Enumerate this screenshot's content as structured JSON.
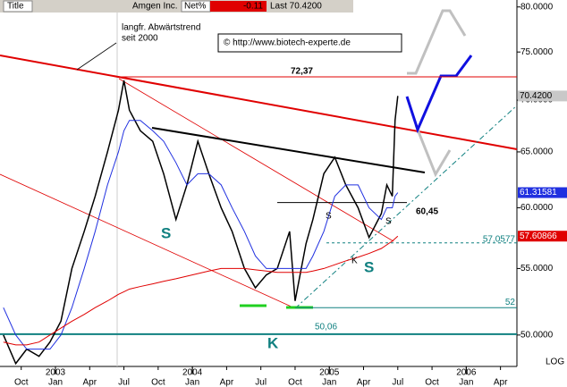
{
  "header": {
    "title_label": "Title",
    "symbol": "Amgen Inc.",
    "net_label": "Net%",
    "net_value": "-0.11",
    "last": "Last 70.4200"
  },
  "annotations": {
    "trend_note_1": "langfr. Abwärtstrend",
    "trend_note_2": "seit 2000",
    "copyright": "© http://www.biotech-experte.de",
    "s1": "S",
    "s2": "S",
    "s3": "S",
    "s4": "S",
    "k1": "K",
    "k2": "K",
    "scale": "LOG"
  },
  "chart_data": {
    "type": "line",
    "y_scale": "log",
    "ylim": [
      47.8,
      80.8
    ],
    "xlim": [
      2002.595,
      2006.37
    ],
    "yticks": [
      {
        "value": 80,
        "label": "80.0000"
      },
      {
        "value": 75,
        "label": "75.0000"
      },
      {
        "value": 70,
        "label": "70.0000"
      },
      {
        "value": 65,
        "label": "65.0000"
      },
      {
        "value": 60,
        "label": "60.0000"
      },
      {
        "value": 55,
        "label": "55.0000"
      },
      {
        "value": 50,
        "label": "50.0000"
      }
    ],
    "xticks": [
      {
        "value": 2002.75,
        "label": "Oct"
      },
      {
        "value": 2003,
        "label": "Jan"
      },
      {
        "value": 2003.25,
        "label": "Apr"
      },
      {
        "value": 2003.5,
        "label": "Jul"
      },
      {
        "value": 2003.75,
        "label": "Oct"
      },
      {
        "value": 2004,
        "label": "Jan"
      },
      {
        "value": 2004.25,
        "label": "Apr"
      },
      {
        "value": 2004.5,
        "label": "Jul"
      },
      {
        "value": 2004.75,
        "label": "Oct"
      },
      {
        "value": 2005,
        "label": "Jan"
      },
      {
        "value": 2005.25,
        "label": "Apr"
      },
      {
        "value": 2005.5,
        "label": "Jul"
      },
      {
        "value": 2005.75,
        "label": "Oct"
      },
      {
        "value": 2006,
        "label": "Jan"
      },
      {
        "value": 2006.25,
        "label": "Apr"
      }
    ],
    "year_ticks": [
      2003,
      2004,
      2005,
      2006
    ],
    "x": [
      2002.62,
      2002.71,
      2002.79,
      2002.88,
      2002.96,
      2003.04,
      2003.12,
      2003.21,
      2003.29,
      2003.38,
      2003.46,
      2003.5,
      2003.54,
      2003.62,
      2003.71,
      2003.79,
      2003.88,
      2003.96,
      2004.04,
      2004.12,
      2004.21,
      2004.29,
      2004.38,
      2004.46,
      2004.54,
      2004.62,
      2004.71,
      2004.75,
      2004.83,
      2004.88,
      2004.96,
      2005.04,
      2005.12,
      2005.21,
      2005.29,
      2005.38,
      2005.42,
      2005.46,
      2005.48,
      2005.5
    ],
    "series": [
      {
        "color": "#000000",
        "values": [
          50,
          48,
          49,
          48.5,
          49.5,
          51,
          55,
          58,
          61,
          65,
          69,
          72,
          69,
          67,
          66,
          63,
          59,
          62,
          66,
          63,
          60,
          58,
          55,
          53.5,
          54.5,
          55,
          58,
          52.5,
          57,
          59,
          63,
          64.5,
          62,
          60,
          57.5,
          59.5,
          62,
          61,
          68,
          70.42
        ]
      },
      {
        "color": "#2030e0",
        "values": [
          52,
          50,
          49,
          49,
          49,
          50,
          52,
          55,
          58,
          62,
          65,
          67,
          68,
          68,
          67,
          66,
          64,
          62,
          63,
          63,
          62,
          60,
          58,
          56,
          55,
          55,
          55,
          55,
          55,
          56,
          58,
          61,
          62,
          62,
          60,
          59,
          60,
          60,
          61,
          61.31581
        ]
      },
      {
        "color": "#e00000",
        "values": [
          49.5,
          49.3,
          49.3,
          49.5,
          50,
          50.5,
          51,
          51.5,
          52,
          52.5,
          53,
          53.2,
          53.4,
          53.6,
          53.8,
          54,
          54.2,
          54.4,
          54.6,
          54.8,
          55,
          55,
          55,
          54.9,
          54.8,
          54.7,
          54.7,
          54.7,
          54.7,
          54.8,
          55,
          55.3,
          55.6,
          55.9,
          56.2,
          56.6,
          56.9,
          57.2,
          57.4,
          57.60866
        ]
      }
    ],
    "last_values": [
      {
        "value": 70.42,
        "label": "70.4200",
        "color": "#c8c8c8"
      },
      {
        "value": 61.31581,
        "color": "#2030e0"
      },
      {
        "value": 57.60866,
        "color": "#e00000"
      }
    ],
    "levels": [
      {
        "value": 72.37,
        "label": "72,37",
        "color": "#e00000"
      },
      {
        "value": 60.45,
        "label": "60,45",
        "color": "#000000"
      },
      {
        "value": 57.0577,
        "color": "#108080"
      },
      {
        "value": 52,
        "color": "#108080"
      },
      {
        "value": 50.06,
        "label": "50,06",
        "color": "#108080"
      }
    ]
  }
}
